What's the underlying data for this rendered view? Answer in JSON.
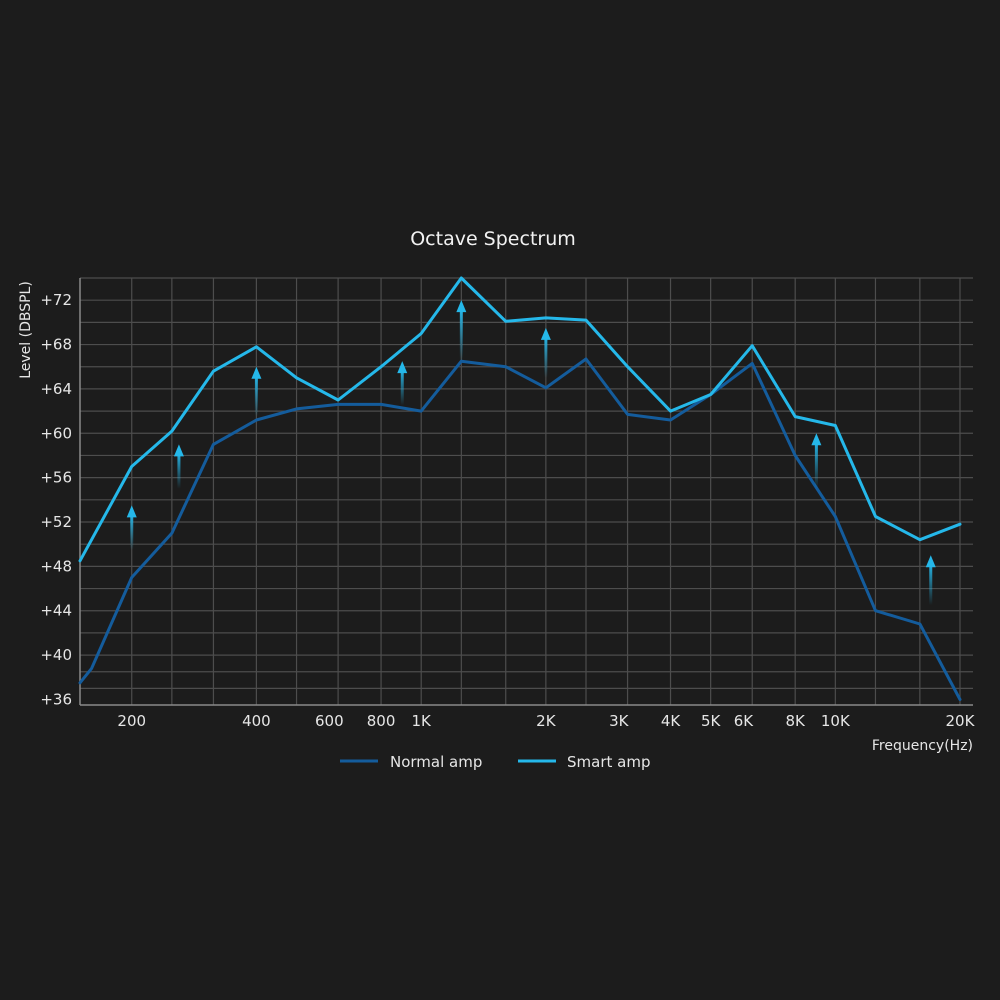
{
  "chart_data": {
    "type": "line",
    "title": "Octave Spectrum",
    "xlabel": "Frequency(Hz)",
    "ylabel": "Level (DBSPL)",
    "x_scale": "log",
    "xlim": [
      150,
      21500
    ],
    "ylim": [
      35.5,
      74
    ],
    "yticks": [
      {
        "value": 36,
        "label": "+36"
      },
      {
        "value": 40,
        "label": "+40"
      },
      {
        "value": 44,
        "label": "+44"
      },
      {
        "value": 48,
        "label": "+48"
      },
      {
        "value": 52,
        "label": "+52"
      },
      {
        "value": 56,
        "label": "+56"
      },
      {
        "value": 60,
        "label": "+60"
      },
      {
        "value": 64,
        "label": "+64"
      },
      {
        "value": 68,
        "label": "+68"
      },
      {
        "value": 72,
        "label": "+72"
      }
    ],
    "xticks": [
      {
        "value": 200,
        "label": "200"
      },
      {
        "value": 400,
        "label": "400"
      },
      {
        "value": 600,
        "label": "600"
      },
      {
        "value": 800,
        "label": "800"
      },
      {
        "value": 1000,
        "label": "1K"
      },
      {
        "value": 2000,
        "label": "2K"
      },
      {
        "value": 3000,
        "label": "3K"
      },
      {
        "value": 4000,
        "label": "4K"
      },
      {
        "value": 5000,
        "label": "5K"
      },
      {
        "value": 6000,
        "label": "6K"
      },
      {
        "value": 8000,
        "label": "8K"
      },
      {
        "value": 10000,
        "label": "10K"
      },
      {
        "value": 20000,
        "label": "20K"
      }
    ],
    "x_gridlines": [
      200,
      250,
      315,
      400,
      500,
      630,
      800,
      1000,
      1250,
      1600,
      2000,
      2500,
      3150,
      4000,
      5000,
      6300,
      8000,
      10000,
      12500,
      16000,
      20000
    ],
    "y_gridlines": [
      37,
      38.5,
      40,
      42,
      44,
      46,
      48,
      50,
      52,
      54,
      56,
      58,
      60,
      62,
      64,
      66,
      68,
      70,
      72,
      74
    ],
    "grid": true,
    "legend_position": "bottom",
    "series": [
      {
        "name": "Normal amp",
        "color": "#145c9c",
        "points": [
          {
            "x": 150,
            "y": 37.5
          },
          {
            "x": 160,
            "y": 38.8
          },
          {
            "x": 200,
            "y": 47
          },
          {
            "x": 250,
            "y": 51
          },
          {
            "x": 315,
            "y": 59
          },
          {
            "x": 400,
            "y": 61.2
          },
          {
            "x": 500,
            "y": 62.2
          },
          {
            "x": 630,
            "y": 62.6
          },
          {
            "x": 800,
            "y": 62.6
          },
          {
            "x": 1000,
            "y": 62
          },
          {
            "x": 1250,
            "y": 66.5
          },
          {
            "x": 1600,
            "y": 66
          },
          {
            "x": 2000,
            "y": 64.1
          },
          {
            "x": 2500,
            "y": 66.7
          },
          {
            "x": 3150,
            "y": 61.7
          },
          {
            "x": 4000,
            "y": 61.2
          },
          {
            "x": 5000,
            "y": 63.5
          },
          {
            "x": 6300,
            "y": 66.3
          },
          {
            "x": 8000,
            "y": 58
          },
          {
            "x": 10000,
            "y": 52.5
          },
          {
            "x": 12500,
            "y": 44
          },
          {
            "x": 16000,
            "y": 42.8
          },
          {
            "x": 20000,
            "y": 36
          }
        ]
      },
      {
        "name": "Smart amp",
        "color": "#25b8ea",
        "points": [
          {
            "x": 150,
            "y": 48.5
          },
          {
            "x": 200,
            "y": 57
          },
          {
            "x": 250,
            "y": 60.2
          },
          {
            "x": 315,
            "y": 65.6
          },
          {
            "x": 400,
            "y": 67.8
          },
          {
            "x": 500,
            "y": 65
          },
          {
            "x": 630,
            "y": 63
          },
          {
            "x": 800,
            "y": 66
          },
          {
            "x": 1000,
            "y": 69
          },
          {
            "x": 1250,
            "y": 74
          },
          {
            "x": 1600,
            "y": 70.1
          },
          {
            "x": 2000,
            "y": 70.4
          },
          {
            "x": 2500,
            "y": 70.2
          },
          {
            "x": 3150,
            "y": 66
          },
          {
            "x": 4000,
            "y": 62
          },
          {
            "x": 5000,
            "y": 63.5
          },
          {
            "x": 6300,
            "y": 67.9
          },
          {
            "x": 8000,
            "y": 61.5
          },
          {
            "x": 10000,
            "y": 60.7
          },
          {
            "x": 12500,
            "y": 52.5
          },
          {
            "x": 16000,
            "y": 50.4
          },
          {
            "x": 20000,
            "y": 51.8
          }
        ]
      }
    ],
    "annotations": {
      "type": "upward-arrow",
      "color": "#25b8ea",
      "arrows": [
        {
          "x": 200,
          "from": 49.5,
          "to": 53.5
        },
        {
          "x": 260,
          "from": 55,
          "to": 59
        },
        {
          "x": 400,
          "from": 61.5,
          "to": 66
        },
        {
          "x": 900,
          "from": 62.5,
          "to": 66.5
        },
        {
          "x": 1250,
          "from": 66.5,
          "to": 72
        },
        {
          "x": 2000,
          "from": 65,
          "to": 69.5
        },
        {
          "x": 9000,
          "from": 55,
          "to": 60
        },
        {
          "x": 17000,
          "from": 44.5,
          "to": 49
        }
      ]
    }
  }
}
